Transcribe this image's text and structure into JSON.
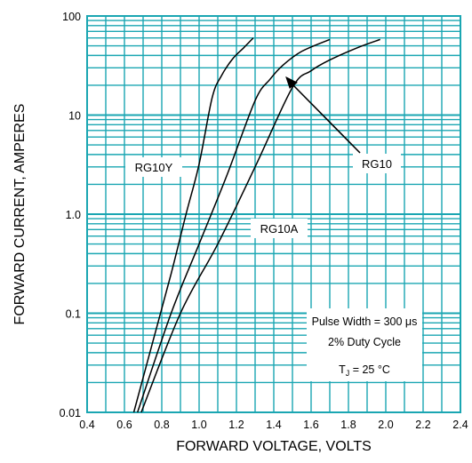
{
  "chart_data": {
    "type": "line",
    "title": "",
    "xlabel": "FORWARD VOLTAGE, VOLTS",
    "ylabel": "FORWARD CURRENT, AMPERES",
    "xlim": [
      0.4,
      2.4
    ],
    "ylim": [
      0.01,
      100
    ],
    "y_scale": "log",
    "grid": true,
    "x_ticks": [
      "0.4",
      "0.6",
      "0.8",
      "1.0",
      "1.2",
      "1.4",
      "1.6",
      "1.8",
      "2.0",
      "2.2",
      "2.4"
    ],
    "y_ticks": [
      "0.01",
      "0.1",
      "1.0",
      "10",
      "100"
    ],
    "series": [
      {
        "name": "RG10Y",
        "x": [
          0.65,
          0.75,
          0.85,
          0.93,
          1.0,
          1.07,
          1.12,
          1.18,
          1.24,
          1.29
        ],
        "y": [
          0.01,
          0.05,
          0.25,
          1.0,
          3.2,
          15,
          25,
          37,
          48,
          60
        ]
      },
      {
        "name": "RG10",
        "x": [
          0.67,
          0.85,
          1.0,
          1.15,
          1.3,
          1.38,
          1.45,
          1.55,
          1.7
        ],
        "y": [
          0.01,
          0.1,
          0.5,
          2.5,
          14,
          23,
          32,
          44,
          58
        ]
      },
      {
        "name": "RG10A",
        "x": [
          0.69,
          0.9,
          1.1,
          1.3,
          1.5,
          1.6,
          1.7,
          1.85,
          1.97
        ],
        "y": [
          0.01,
          0.1,
          0.5,
          3.0,
          19,
          28,
          36,
          48,
          58
        ]
      }
    ],
    "annotations": [
      {
        "text": "RG10Y"
      },
      {
        "text": "RG10"
      },
      {
        "text": "RG10A"
      },
      {
        "text": "Pulse Width = 300 μs"
      },
      {
        "text": "2% Duty Cycle"
      },
      {
        "text_main": "T",
        "text_sub": "J",
        "text_rest": " = 25 °C"
      }
    ]
  }
}
